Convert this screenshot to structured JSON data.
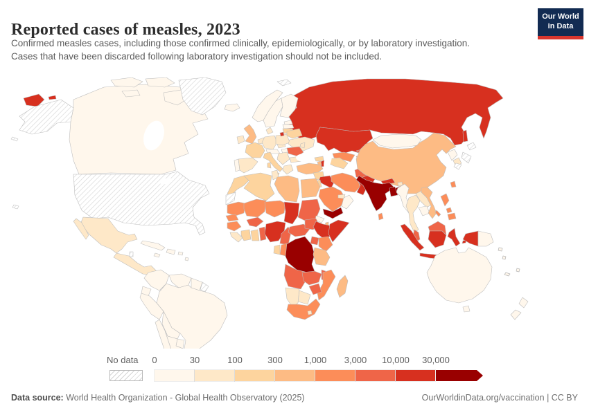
{
  "header": {
    "title": "Reported cases of measles, 2023",
    "subtitle_line1": "Confirmed measles cases, including those confirmed clinically, epidemiologically, or by laboratory investigation.",
    "subtitle_line2": "Cases that have been discarded following laboratory investigation should not be included.",
    "logo": {
      "line1": "Our World",
      "line2": "in Data",
      "bg_color": "#122b52",
      "accent_color": "#d8362e"
    }
  },
  "legend": {
    "no_data_label": "No data",
    "ticks": [
      "0",
      "30",
      "100",
      "300",
      "1,000",
      "3,000",
      "10,000",
      "30,000"
    ]
  },
  "footer": {
    "source_label": "Data source:",
    "source_rest": " World Health Organization - Global Health Observatory (2025)",
    "right_text": "OurWorldinData.org/vaccination | CC BY"
  },
  "chart_data": {
    "type": "choropleth-map",
    "title": "Reported cases of measles, 2023",
    "metric": "Reported cases of measles",
    "year": 2023,
    "projection": "world",
    "bin_edges": [
      "0",
      "30",
      "100",
      "300",
      "1,000",
      "3,000",
      "10,000",
      "30,000"
    ],
    "bin_labels": [
      "0-30",
      "30-100",
      "100-300",
      "300-1,000",
      "1,000-3,000",
      "3,000-10,000",
      "10,000-30,000",
      "30,000+"
    ],
    "bin_colors": [
      "#fff7ec",
      "#fee8c8",
      "#fdd49e",
      "#fdbb84",
      "#fc8d59",
      "#ef6548",
      "#d7301f",
      "#990000"
    ],
    "no_data_label": "No data",
    "countries": [
      {
        "id": "canada",
        "name": "Canada",
        "bin": 0
      },
      {
        "id": "usa",
        "name": "United States",
        "bin": "no-data"
      },
      {
        "id": "greenland",
        "name": "Greenland",
        "bin": "no-data"
      },
      {
        "id": "mexico",
        "name": "Mexico",
        "bin": 1
      },
      {
        "id": "central-america",
        "name": "Central America",
        "bin": 1
      },
      {
        "id": "belize",
        "name": "Belize",
        "bin": "no-data"
      },
      {
        "id": "cuba",
        "name": "Cuba",
        "bin": 0
      },
      {
        "id": "hispaniola",
        "name": "Haiti & Dominican Republic",
        "bin": 0
      },
      {
        "id": "jamaica",
        "name": "Jamaica",
        "bin": 0
      },
      {
        "id": "puerto-rico",
        "name": "Puerto Rico",
        "bin": 0
      },
      {
        "id": "lesser-antilles",
        "name": "Lesser Antilles",
        "bin": 0
      },
      {
        "id": "colombia",
        "name": "Colombia",
        "bin": 0
      },
      {
        "id": "venezuela",
        "name": "Venezuela",
        "bin": 0
      },
      {
        "id": "guyana",
        "name": "Guyana & Suriname",
        "bin": 0
      },
      {
        "id": "french-guiana",
        "name": "French Guiana",
        "bin": "no-data"
      },
      {
        "id": "ecuador",
        "name": "Ecuador",
        "bin": 0
      },
      {
        "id": "peru",
        "name": "Peru",
        "bin": 0
      },
      {
        "id": "brazil",
        "name": "Brazil",
        "bin": 0
      },
      {
        "id": "bolivia",
        "name": "Bolivia",
        "bin": 0
      },
      {
        "id": "paraguay",
        "name": "Paraguay",
        "bin": 0
      },
      {
        "id": "chile",
        "name": "Chile",
        "bin": 0
      },
      {
        "id": "argentina",
        "name": "Argentina",
        "bin": 0
      },
      {
        "id": "uruguay",
        "name": "Uruguay",
        "bin": 0
      },
      {
        "id": "iceland",
        "name": "Iceland",
        "bin": 0
      },
      {
        "id": "svalbard",
        "name": "Svalbard",
        "bin": "no-data"
      },
      {
        "id": "norway",
        "name": "Norway",
        "bin": 0
      },
      {
        "id": "sweden",
        "name": "Sweden",
        "bin": 0
      },
      {
        "id": "finland",
        "name": "Finland",
        "bin": 0
      },
      {
        "id": "denmark",
        "name": "Denmark",
        "bin": 1
      },
      {
        "id": "uk",
        "name": "United Kingdom",
        "bin": 3
      },
      {
        "id": "ireland",
        "name": "Ireland",
        "bin": 1
      },
      {
        "id": "portugal",
        "name": "Portugal",
        "bin": 0
      },
      {
        "id": "spain",
        "name": "Spain",
        "bin": 1
      },
      {
        "id": "france",
        "name": "France",
        "bin": 2
      },
      {
        "id": "benelux",
        "name": "Belgium & Netherlands",
        "bin": 1
      },
      {
        "id": "germany",
        "name": "Germany",
        "bin": 1
      },
      {
        "id": "czechia",
        "name": "Czechia",
        "bin": 1
      },
      {
        "id": "poland",
        "name": "Poland",
        "bin": 1
      },
      {
        "id": "alps",
        "name": "Switzerland & Austria",
        "bin": 0
      },
      {
        "id": "italy",
        "name": "Italy",
        "bin": 2
      },
      {
        "id": "balkans",
        "name": "Western Balkans",
        "bin": 1
      },
      {
        "id": "hungary",
        "name": "Hungary",
        "bin": 0
      },
      {
        "id": "romania",
        "name": "Romania",
        "bin": 5
      },
      {
        "id": "bulgaria",
        "name": "Bulgaria",
        "bin": 1
      },
      {
        "id": "greece",
        "name": "Greece",
        "bin": 1
      },
      {
        "id": "estonia",
        "name": "Estonia",
        "bin": 0
      },
      {
        "id": "latvia",
        "name": "Latvia",
        "bin": 0
      },
      {
        "id": "lithuania",
        "name": "Lithuania",
        "bin": 2
      },
      {
        "id": "belarus",
        "name": "Belarus",
        "bin": 2
      },
      {
        "id": "ukraine",
        "name": "Ukraine",
        "bin": 1
      },
      {
        "id": "moldova",
        "name": "Moldova",
        "bin": 1
      },
      {
        "id": "russia",
        "name": "Russia",
        "bin": 6
      },
      {
        "id": "kazakhstan",
        "name": "Kazakhstan",
        "bin": 6
      },
      {
        "id": "uzbekistan",
        "name": "Uzbekistan",
        "bin": 4
      },
      {
        "id": "turkmenistan",
        "name": "Turkmenistan",
        "bin": 2
      },
      {
        "id": "kyrgyzstan",
        "name": "Kyrgyzstan",
        "bin": 5
      },
      {
        "id": "tajikistan",
        "name": "Tajikistan",
        "bin": 4
      },
      {
        "id": "georgia",
        "name": "Georgia",
        "bin": 2
      },
      {
        "id": "azerbaijan",
        "name": "Azerbaijan",
        "bin": 6
      },
      {
        "id": "armenia",
        "name": "Armenia",
        "bin": 3
      },
      {
        "id": "turkey",
        "name": "Turkey",
        "bin": 3
      },
      {
        "id": "syria",
        "name": "Syria",
        "bin": 2
      },
      {
        "id": "israel",
        "name": "Israel",
        "bin": 1
      },
      {
        "id": "jordan",
        "name": "Jordan",
        "bin": 2
      },
      {
        "id": "iraq",
        "name": "Iraq",
        "bin": 6
      },
      {
        "id": "saudi-arabia",
        "name": "Saudi Arabia",
        "bin": 4
      },
      {
        "id": "yemen",
        "name": "Yemen",
        "bin": 7
      },
      {
        "id": "oman",
        "name": "Oman",
        "bin": 0
      },
      {
        "id": "uae",
        "name": "United Arab Emirates",
        "bin": 1
      },
      {
        "id": "iran",
        "name": "Iran",
        "bin": 4
      },
      {
        "id": "afghanistan",
        "name": "Afghanistan",
        "bin": 5
      },
      {
        "id": "pakistan",
        "name": "Pakistan",
        "bin": 6
      },
      {
        "id": "morocco",
        "name": "Morocco",
        "bin": 2
      },
      {
        "id": "western-sahara",
        "name": "Western Sahara",
        "bin": "no-data"
      },
      {
        "id": "algeria",
        "name": "Algeria",
        "bin": 2
      },
      {
        "id": "tunisia",
        "name": "Tunisia",
        "bin": 1
      },
      {
        "id": "libya",
        "name": "Libya",
        "bin": 3
      },
      {
        "id": "egypt",
        "name": "Egypt",
        "bin": 3
      },
      {
        "id": "mauritania",
        "name": "Mauritania",
        "bin": 4
      },
      {
        "id": "mali",
        "name": "Mali",
        "bin": 4
      },
      {
        "id": "niger",
        "name": "Niger",
        "bin": 4
      },
      {
        "id": "chad",
        "name": "Chad",
        "bin": 6
      },
      {
        "id": "sudan",
        "name": "Sudan",
        "bin": 5
      },
      {
        "id": "eritrea",
        "name": "Eritrea",
        "bin": 0
      },
      {
        "id": "djibouti",
        "name": "Djibouti",
        "bin": 3
      },
      {
        "id": "senegal",
        "name": "Senegal",
        "bin": 4
      },
      {
        "id": "guinea",
        "name": "Guinea",
        "bin": 4
      },
      {
        "id": "sierra-leone-liberia",
        "name": "Sierra Leone & Liberia",
        "bin": 1
      },
      {
        "id": "cote-divoire",
        "name": "Cote d'Ivoire",
        "bin": 2
      },
      {
        "id": "ghana",
        "name": "Ghana",
        "bin": 2
      },
      {
        "id": "togo-benin",
        "name": "Togo & Benin",
        "bin": 5
      },
      {
        "id": "burkina-faso",
        "name": "Burkina Faso",
        "bin": 5
      },
      {
        "id": "nigeria",
        "name": "Nigeria",
        "bin": 6
      },
      {
        "id": "cameroon",
        "name": "Cameroon",
        "bin": 5
      },
      {
        "id": "car",
        "name": "Central African Republic",
        "bin": 5
      },
      {
        "id": "south-sudan",
        "name": "South Sudan",
        "bin": 5
      },
      {
        "id": "ethiopia",
        "name": "Ethiopia",
        "bin": 6
      },
      {
        "id": "somalia",
        "name": "Somalia",
        "bin": 6
      },
      {
        "id": "kenya",
        "name": "Kenya",
        "bin": 4
      },
      {
        "id": "uganda",
        "name": "Uganda",
        "bin": 5
      },
      {
        "id": "drc",
        "name": "Democratic Republic of Congo",
        "bin": 7
      },
      {
        "id": "congo",
        "name": "Congo",
        "bin": 4
      },
      {
        "id": "gabon",
        "name": "Gabon",
        "bin": 2
      },
      {
        "id": "tanzania",
        "name": "Tanzania",
        "bin": 3
      },
      {
        "id": "angola",
        "name": "Angola",
        "bin": 5
      },
      {
        "id": "zambia",
        "name": "Zambia",
        "bin": 5
      },
      {
        "id": "malawi",
        "name": "Malawi",
        "bin": 5
      },
      {
        "id": "mozambique",
        "name": "Mozambique",
        "bin": 4
      },
      {
        "id": "zimbabwe",
        "name": "Zimbabwe",
        "bin": 5
      },
      {
        "id": "botswana",
        "name": "Botswana",
        "bin": 1
      },
      {
        "id": "namibia",
        "name": "Namibia",
        "bin": 1
      },
      {
        "id": "south-africa",
        "name": "South Africa",
        "bin": 4
      },
      {
        "id": "lesotho",
        "name": "Lesotho",
        "bin": 1
      },
      {
        "id": "madagascar",
        "name": "Madagascar",
        "bin": 3
      },
      {
        "id": "china",
        "name": "China",
        "bin": 3
      },
      {
        "id": "mongolia",
        "name": "Mongolia",
        "bin": 0
      },
      {
        "id": "north-korea",
        "name": "North Korea",
        "bin": 0
      },
      {
        "id": "south-korea",
        "name": "South Korea",
        "bin": 1
      },
      {
        "id": "japan",
        "name": "Japan",
        "bin": "no-data"
      },
      {
        "id": "taiwan",
        "name": "Taiwan",
        "bin": 4
      },
      {
        "id": "india",
        "name": "India",
        "bin": 7
      },
      {
        "id": "nepal",
        "name": "Nepal",
        "bin": 6
      },
      {
        "id": "bhutan",
        "name": "Bhutan",
        "bin": 1
      },
      {
        "id": "bangladesh",
        "name": "Bangladesh",
        "bin": 7
      },
      {
        "id": "sri-lanka",
        "name": "Sri Lanka",
        "bin": 4
      },
      {
        "id": "myanmar",
        "name": "Myanmar",
        "bin": 0
      },
      {
        "id": "thailand",
        "name": "Thailand",
        "bin": 1
      },
      {
        "id": "laos",
        "name": "Laos",
        "bin": 1
      },
      {
        "id": "cambodia",
        "name": "Cambodia",
        "bin": 0
      },
      {
        "id": "vietnam",
        "name": "Vietnam",
        "bin": 3
      },
      {
        "id": "malaysia",
        "name": "Malaysia",
        "bin": 5
      },
      {
        "id": "indonesia",
        "name": "Indonesia",
        "bin": 6
      },
      {
        "id": "philippines",
        "name": "Philippines",
        "bin": 4
      },
      {
        "id": "papua-new-guinea",
        "name": "Papua New Guinea",
        "bin": 0
      },
      {
        "id": "australia",
        "name": "Australia",
        "bin": 0
      },
      {
        "id": "new-zealand",
        "name": "New Zealand",
        "bin": 0
      },
      {
        "id": "pacific-islands",
        "name": "Pacific islands",
        "bin": 0
      }
    ]
  }
}
